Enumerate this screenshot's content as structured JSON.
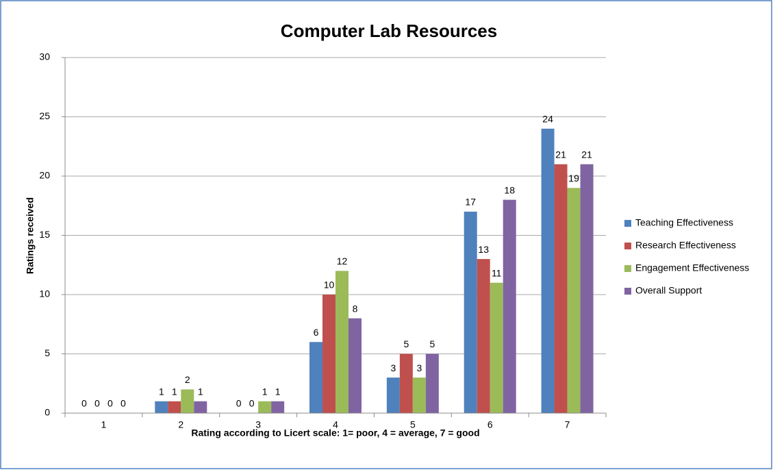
{
  "chart_data": {
    "type": "bar",
    "title": "Computer Lab Resources",
    "x_label": "Rating according to Licert scale: 1= poor, 4 = average, 7 = good",
    "y_label": "Ratings received",
    "categories": [
      "1",
      "2",
      "3",
      "4",
      "5",
      "6",
      "7"
    ],
    "series": [
      {
        "name": "Teaching Effectiveness",
        "color": "#4f81bd",
        "values": [
          0,
          1,
          0,
          6,
          3,
          17,
          24
        ]
      },
      {
        "name": "Research Effectiveness",
        "color": "#c0504d",
        "values": [
          0,
          1,
          0,
          10,
          5,
          13,
          21
        ]
      },
      {
        "name": "Engagement Effectiveness",
        "color": "#9bbb59",
        "values": [
          0,
          2,
          1,
          12,
          3,
          11,
          19
        ]
      },
      {
        "name": "Overall Support",
        "color": "#8064a2",
        "values": [
          0,
          1,
          1,
          8,
          5,
          18,
          21
        ]
      }
    ],
    "ylim": [
      0,
      30
    ],
    "yticks": [
      0,
      5,
      10,
      15,
      20,
      25,
      30
    ],
    "grid": true,
    "legend": "right"
  }
}
